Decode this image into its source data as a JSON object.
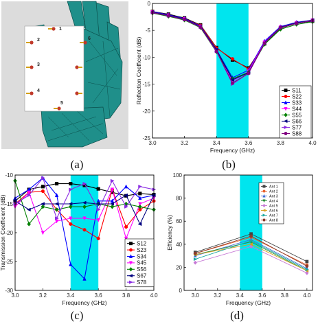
{
  "panel_labels": [
    "(a)",
    "(b)",
    "(c)",
    "(d)"
  ],
  "hand_model": {
    "port_labels": [
      "1",
      "2",
      "3",
      "4",
      "5",
      "6"
    ],
    "hand_color": "#1f8f8a",
    "board_color": "#ffffff",
    "background_color": "#dcdcdc"
  },
  "chart_data": [
    {
      "id": "b",
      "type": "line",
      "xlabel": "Frequency (GHz)",
      "ylabel": "Reflection Coefficient (dB)",
      "xlim": [
        3.0,
        4.0
      ],
      "ylim": [
        -25,
        0
      ],
      "xticks": [
        3.0,
        3.2,
        3.4,
        3.6,
        3.8,
        4.0
      ],
      "xtick_labels": [
        "3.0",
        "3.2",
        "3.4",
        "3.6",
        "3.8",
        "4.0"
      ],
      "yticks": [
        0,
        -5,
        -10,
        -15,
        -20,
        -25
      ],
      "ytick_labels": [
        "0",
        "-5",
        "-10",
        "-15",
        "-20",
        "-25"
      ],
      "band": [
        3.4,
        3.6
      ],
      "band_color": "#00e5ee",
      "legend_position": "lower-right",
      "x": [
        3.0,
        3.1,
        3.2,
        3.3,
        3.4,
        3.5,
        3.6,
        3.7,
        3.8,
        3.9,
        4.0
      ],
      "series": [
        {
          "name": "S11",
          "color": "#000000",
          "marker": "square",
          "values": [
            -1.5,
            -2.0,
            -2.7,
            -4.0,
            -8.2,
            -10.5,
            -12.0,
            -7.5,
            -4.6,
            -3.7,
            -3.3
          ]
        },
        {
          "name": "S22",
          "color": "#ff0000",
          "marker": "circle",
          "values": [
            -1.5,
            -2.1,
            -2.8,
            -4.1,
            -8.3,
            -10.3,
            -12.2,
            -7.2,
            -4.5,
            -3.6,
            -3.2
          ]
        },
        {
          "name": "S33",
          "color": "#0000ff",
          "marker": "triangle-up",
          "values": [
            -1.5,
            -2.1,
            -2.8,
            -4.2,
            -8.6,
            -13.8,
            -12.4,
            -7.0,
            -4.3,
            -3.5,
            -3.1
          ]
        },
        {
          "name": "S44",
          "color": "#ff00ff",
          "marker": "triangle-down",
          "values": [
            -1.6,
            -2.2,
            -2.9,
            -4.3,
            -8.8,
            -14.5,
            -12.6,
            -7.2,
            -4.4,
            -3.6,
            -3.1
          ]
        },
        {
          "name": "S55",
          "color": "#008000",
          "marker": "diamond",
          "values": [
            -1.8,
            -2.4,
            -3.1,
            -4.5,
            -9.0,
            -14.0,
            -12.8,
            -7.6,
            -4.8,
            -3.9,
            -3.4
          ]
        },
        {
          "name": "S66",
          "color": "#000080",
          "marker": "triangle-left",
          "values": [
            -1.6,
            -2.2,
            -2.9,
            -4.3,
            -8.6,
            -14.2,
            -12.9,
            -7.3,
            -4.4,
            -3.6,
            -3.1
          ]
        },
        {
          "name": "S77",
          "color": "#8a2be2",
          "marker": "triangle-right",
          "values": [
            -1.7,
            -2.3,
            -3.0,
            -4.4,
            -8.9,
            -15.0,
            -13.0,
            -7.4,
            -4.5,
            -3.7,
            -3.2
          ]
        },
        {
          "name": "S88",
          "color": "#800080",
          "marker": "hexagon",
          "values": [
            -1.7,
            -2.3,
            -3.0,
            -4.4,
            -8.9,
            -14.8,
            -13.0,
            -7.4,
            -4.5,
            -3.7,
            -3.2
          ]
        }
      ]
    },
    {
      "id": "c",
      "type": "line",
      "xlabel": "Frequency (GHz)",
      "ylabel": "Transmission Coefficient (dB)",
      "xlim": [
        3.0,
        4.0
      ],
      "ylim": [
        -30,
        -10
      ],
      "xticks": [
        3.0,
        3.2,
        3.4,
        3.6,
        3.8,
        4.0
      ],
      "xtick_labels": [
        "3.0",
        "3.2",
        "3.4",
        "3.6",
        "3.8",
        "4.0"
      ],
      "yticks": [
        -10,
        -15,
        -20,
        -25,
        -30
      ],
      "ytick_labels": [
        "-10",
        "-15",
        "-20",
        "-25",
        "-30"
      ],
      "band": [
        3.4,
        3.6
      ],
      "band_color": "#00e5ee",
      "legend_position": "lower-right",
      "x": [
        3.0,
        3.1,
        3.2,
        3.3,
        3.4,
        3.5,
        3.6,
        3.7,
        3.8,
        3.9,
        4.0
      ],
      "series": [
        {
          "name": "S12",
          "color": "#000000",
          "marker": "square",
          "values": [
            -14.5,
            -12.5,
            -12.0,
            -11.5,
            -11.5,
            -11.8,
            -12.4,
            -13.0,
            -13.6,
            -13.2,
            -13.4
          ]
        },
        {
          "name": "S23",
          "color": "#ff0000",
          "marker": "circle",
          "values": [
            -15.0,
            -13.0,
            -12.8,
            -16.0,
            -18.5,
            -19.5,
            -21.0,
            -12.5,
            -19.0,
            -16.0,
            -14.5
          ]
        },
        {
          "name": "S34",
          "color": "#0000ff",
          "marker": "triangle-up",
          "values": [
            -14.0,
            -12.5,
            -10.5,
            -13.5,
            -25.5,
            -28.0,
            -14.5,
            -14.5,
            -12.0,
            -14.0,
            -13.5
          ]
        },
        {
          "name": "S45",
          "color": "#ff00ff",
          "marker": "triangle-down",
          "values": [
            -15.5,
            -13.0,
            -20.0,
            -18.0,
            -17.5,
            -17.5,
            -17.8,
            -12.5,
            -21.0,
            -15.0,
            -14.0
          ]
        },
        {
          "name": "S56",
          "color": "#008000",
          "marker": "diamond",
          "values": [
            -11.0,
            -18.5,
            -15.5,
            -16.0,
            -15.5,
            -15.5,
            -15.0,
            -15.5,
            -15.0,
            -15.5,
            -16.0
          ]
        },
        {
          "name": "S67",
          "color": "#000080",
          "marker": "triangle-left",
          "values": [
            -14.5,
            -16.0,
            -15.0,
            -15.0,
            -15.0,
            -14.8,
            -15.0,
            -15.0,
            -13.5,
            -18.5,
            -13.5
          ]
        },
        {
          "name": "S78",
          "color": "#8a2be2",
          "marker": "triangle-right",
          "values": [
            -15.0,
            -13.5,
            -10.5,
            -17.5,
            -12.5,
            -11.5,
            -16.0,
            -11.0,
            -15.5,
            -12.0,
            -12.5
          ]
        }
      ]
    },
    {
      "id": "d",
      "type": "line",
      "xlabel": "Frequency (GHz)",
      "ylabel": "Efficiency (%)",
      "xlim": [
        2.9,
        4.05
      ],
      "ylim": [
        0,
        100
      ],
      "xticks": [
        3.0,
        3.2,
        3.4,
        3.6,
        3.8,
        4.0
      ],
      "xtick_labels": [
        "3.0",
        "3.2",
        "3.4",
        "3.6",
        "3.8",
        "4.0"
      ],
      "yticks": [
        0,
        20,
        40,
        60,
        80,
        100
      ],
      "ytick_labels": [
        "0",
        "20",
        "40",
        "60",
        "80",
        "100"
      ],
      "band": [
        3.4,
        3.6
      ],
      "band_color": "#00e5ee",
      "legend_position": "top-right",
      "x": [
        3.0,
        3.5,
        4.0
      ],
      "series": [
        {
          "name": "Ant 1",
          "color": "#444444",
          "marker": "square",
          "values": [
            33,
            49,
            25
          ]
        },
        {
          "name": "Ant 2",
          "color": "#e8602c",
          "marker": "circle",
          "values": [
            32,
            46,
            22
          ]
        },
        {
          "name": "Ant 3",
          "color": "#3f6fd8",
          "marker": "triangle-up",
          "values": [
            30,
            44,
            19
          ]
        },
        {
          "name": "Ant 4",
          "color": "#2a8f3a",
          "marker": "triangle-down",
          "values": [
            31,
            42,
            17
          ]
        },
        {
          "name": "Ant 5",
          "color": "#c77ad6",
          "marker": "diamond",
          "values": [
            24,
            38,
            15
          ]
        },
        {
          "name": "Ant 6",
          "color": "#d6a020",
          "marker": "triangle-left",
          "values": [
            31,
            40,
            17
          ]
        },
        {
          "name": "Ant 7",
          "color": "#1aa7a0",
          "marker": "triangle-right",
          "values": [
            27,
            43,
            18
          ]
        },
        {
          "name": "Ant 8",
          "color": "#8b3a2a",
          "marker": "hexagon",
          "values": [
            32,
            47,
            21
          ]
        }
      ]
    }
  ]
}
